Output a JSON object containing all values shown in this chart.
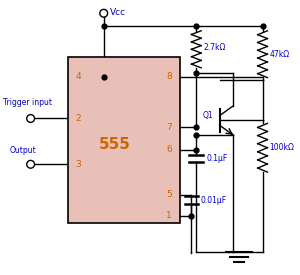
{
  "bg_color": "#ffffff",
  "chip_color": "#e8c0b8",
  "line_color": "#000000",
  "text_blue": "#0000cc",
  "text_orange": "#cc6600",
  "chip_label": "555",
  "vcc_label": "Vcc",
  "trigger_label": "Trigger input",
  "output_label": "Output",
  "r1_label": "2.7kΩ",
  "r2_label": "47kΩ",
  "r3_label": "100kΩ",
  "c1_label": "0.1μF",
  "c2_label": "0.01μF",
  "q1_label": "Q1",
  "figw": 3.0,
  "figh": 2.75,
  "dpi": 100
}
